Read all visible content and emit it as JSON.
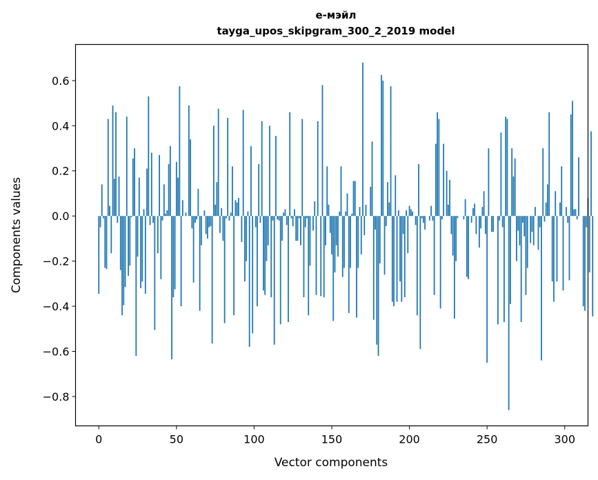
{
  "chart_data": {
    "type": "bar",
    "title": "е-мэйл",
    "subtitle": "tayga_upos_skipgram_300_2_2019 model",
    "xlabel": "Vector components",
    "ylabel": "Components values",
    "xlim": [
      -15,
      315
    ],
    "ylim": [
      -0.93,
      0.76
    ],
    "xticks": [
      0,
      50,
      100,
      150,
      200,
      250,
      300
    ],
    "xtick_labels": [
      "0",
      "50",
      "100",
      "150",
      "200",
      "250",
      "300"
    ],
    "yticks": [
      -0.8,
      -0.6,
      -0.4,
      -0.2,
      0.0,
      0.2,
      0.4,
      0.6
    ],
    "ytick_labels": [
      "−0.8",
      "−0.6",
      "−0.4",
      "−0.2",
      "0.0",
      "0.2",
      "0.4",
      "0.6"
    ],
    "bar_color": "#1f77b4",
    "grid": false,
    "values": [
      -0.345,
      -0.05,
      0.14,
      -0.01,
      -0.23,
      -0.235,
      0.43,
      0.045,
      -0.165,
      0.49,
      0.165,
      0.46,
      -0.03,
      0.175,
      -0.24,
      -0.44,
      -0.395,
      -0.315,
      0.44,
      -0.265,
      -0.22,
      -0.005,
      0.255,
      0.3,
      -0.62,
      -0.18,
      0.17,
      -0.32,
      -0.29,
      0.03,
      -0.345,
      0.21,
      0.53,
      -0.04,
      0.28,
      -0.03,
      -0.505,
      0.0,
      -0.165,
      0.27,
      -0.28,
      -0.02,
      0.14,
      0.01,
      0.025,
      0.23,
      0.31,
      -0.635,
      -0.36,
      -0.325,
      0.24,
      0.17,
      0.575,
      -0.4,
      0.07,
      0.0,
      0.015,
      0.0,
      0.49,
      0.34,
      -0.055,
      -0.295,
      -0.03,
      -0.015,
      0.12,
      -0.42,
      -0.13,
      0.0,
      0.025,
      -0.08,
      -0.1,
      -0.05,
      -0.045,
      -0.565,
      0.4,
      0.05,
      0.15,
      0.475,
      -0.075,
      0.035,
      -0.11,
      -0.475,
      -0.01,
      0.435,
      -0.02,
      0.015,
      0.22,
      -0.44,
      0.07,
      0.06,
      0.08,
      0.0,
      -0.115,
      0.47,
      -0.29,
      -0.2,
      0.02,
      -0.58,
      0.31,
      -0.52,
      0.0,
      -0.05,
      -0.4,
      0.23,
      -0.03,
      0.42,
      -0.33,
      -0.35,
      -0.2,
      -0.13,
      0.4,
      -0.36,
      -0.02,
      -0.57,
      0.355,
      -0.015,
      -0.02,
      -0.48,
      -0.11,
      0.015,
      0.03,
      -0.04,
      -0.47,
      0.46,
      -0.01,
      -0.045,
      0.03,
      -0.11,
      -0.11,
      -0.01,
      -0.13,
      0.43,
      -0.36,
      -0.05,
      -0.01,
      -0.44,
      -0.22,
      0.0,
      -0.065,
      0.065,
      -0.35,
      0.42,
      0.0,
      -0.355,
      0.58,
      -0.36,
      -0.13,
      0.22,
      0.05,
      -0.075,
      -0.17,
      -0.465,
      -0.25,
      -0.13,
      -0.18,
      0.02,
      0.22,
      -0.27,
      -0.23,
      0.02,
      0.1,
      -0.43,
      -0.23,
      0.01,
      0.155,
      0.155,
      -0.45,
      -0.23,
      0.04,
      -0.17,
      0.68,
      -0.085,
      0.05,
      0.0,
      0.0,
      0.13,
      0.33,
      -0.46,
      -0.06,
      -0.57,
      -0.62,
      -0.21,
      0.625,
      0.6,
      -0.26,
      -0.045,
      0.15,
      0.06,
      0.575,
      -0.38,
      -0.4,
      0.18,
      -0.38,
      0.025,
      -0.29,
      -0.38,
      -0.08,
      -0.36,
      0.025,
      -0.165,
      0.045,
      0.03,
      0.02,
      0.0,
      -0.04,
      -0.44,
      0.23,
      -0.59,
      -0.01,
      -0.03,
      -0.06,
      0.0,
      0.0,
      -0.02,
      0.045,
      -0.02,
      -0.35,
      0.32,
      0.46,
      0.43,
      -0.41,
      -0.015,
      0.32,
      0.0,
      0.2,
      0.05,
      0.16,
      -0.08,
      -0.175,
      -0.455,
      -0.2,
      -0.01,
      0.0,
      0.0,
      0.0,
      -0.015,
      0.075,
      -0.27,
      -0.28,
      0.0,
      -0.03,
      0.035,
      0.055,
      -0.08,
      0.0,
      -0.14,
      -0.055,
      0.04,
      0.11,
      -0.08,
      -0.65,
      0.3,
      0.0,
      -0.07,
      -0.07,
      0.0,
      0.0,
      -0.48,
      -0.02,
      0.37,
      -0.05,
      -0.47,
      0.44,
      0.43,
      -0.86,
      -0.39,
      0.3,
      0.175,
      0.255,
      -0.2,
      -0.065,
      -0.13,
      -0.47,
      -0.03,
      -0.09,
      -0.35,
      -0.23,
      0.0,
      -0.12,
      -0.07,
      -0.13,
      0.04,
      0.0,
      -0.15,
      -0.05,
      -0.64,
      0.3,
      -0.025,
      0.06,
      0.14,
      0.46,
      0.0,
      -0.29,
      -0.38,
      0.11,
      -0.29,
      0.0,
      0.06,
      0.22,
      -0.33,
      0.0,
      0.04,
      -0.03,
      -0.285,
      0.45,
      0.51,
      0.03,
      0.03,
      -0.015,
      0.26,
      0.0,
      0.0,
      -0.4,
      -0.42,
      -0.05,
      0.08,
      -0.25,
      0.375,
      -0.445,
      0.0
    ]
  }
}
